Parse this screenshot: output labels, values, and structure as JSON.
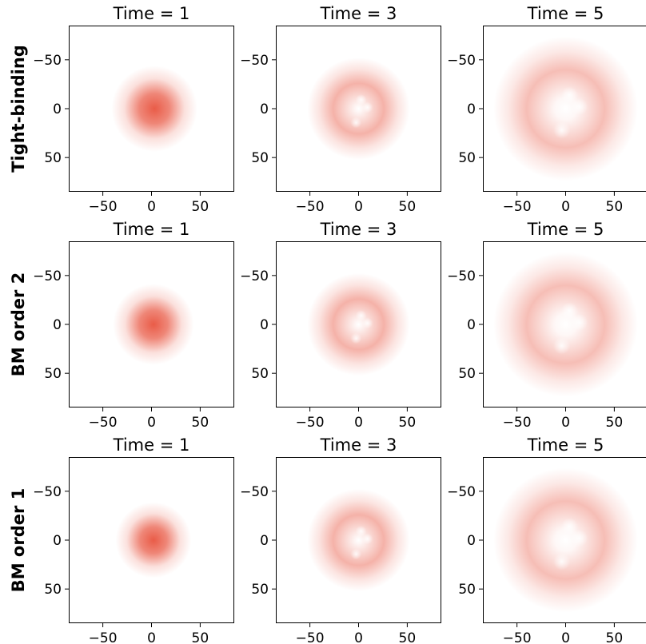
{
  "chart_data": {
    "type": "heatmap",
    "colormap": [
      "#ffffff",
      "#e8533e"
    ],
    "xlim": [
      -85,
      85
    ],
    "ylim": [
      -85,
      85
    ],
    "xticks": [
      -50,
      0,
      50
    ],
    "yticks": [
      -50,
      0,
      50
    ],
    "xtick_labels": [
      "−50",
      "0",
      "50"
    ],
    "ytick_labels": [
      "50",
      "0",
      "−50"
    ],
    "column_titles": [
      "Time = 1",
      "Time = 3",
      "Time = 5"
    ],
    "rows": [
      {
        "label": "Tight-binding",
        "panels": [
          {
            "time": 1,
            "shape": "blob",
            "center": [
              3,
              0
            ],
            "radius": 0,
            "width": 17,
            "peak": 1.0
          },
          {
            "time": 3,
            "shape": "ring",
            "center": [
              0,
              0
            ],
            "radius": 26,
            "width": 14,
            "peak": 0.45
          },
          {
            "time": 5,
            "shape": "ring",
            "center": [
              0,
              0
            ],
            "radius": 40,
            "width": 18,
            "peak": 0.38
          }
        ]
      },
      {
        "label": "BM order 2",
        "panels": [
          {
            "time": 1,
            "shape": "blob",
            "center": [
              2,
              0
            ],
            "radius": 0,
            "width": 16,
            "peak": 1.0
          },
          {
            "time": 3,
            "shape": "ring",
            "center": [
              0,
              0
            ],
            "radius": 26,
            "width": 14,
            "peak": 0.45
          },
          {
            "time": 5,
            "shape": "ring",
            "center": [
              0,
              0
            ],
            "radius": 40,
            "width": 18,
            "peak": 0.38
          }
        ]
      },
      {
        "label": "BM order 1",
        "panels": [
          {
            "time": 1,
            "shape": "blob",
            "center": [
              2,
              0
            ],
            "radius": 0,
            "width": 15,
            "peak": 1.0
          },
          {
            "time": 3,
            "shape": "ring",
            "center": [
              0,
              0
            ],
            "radius": 26,
            "width": 14,
            "peak": 0.45
          },
          {
            "time": 5,
            "shape": "ring",
            "center": [
              0,
              0
            ],
            "radius": 40,
            "width": 18,
            "peak": 0.38
          }
        ]
      }
    ]
  }
}
